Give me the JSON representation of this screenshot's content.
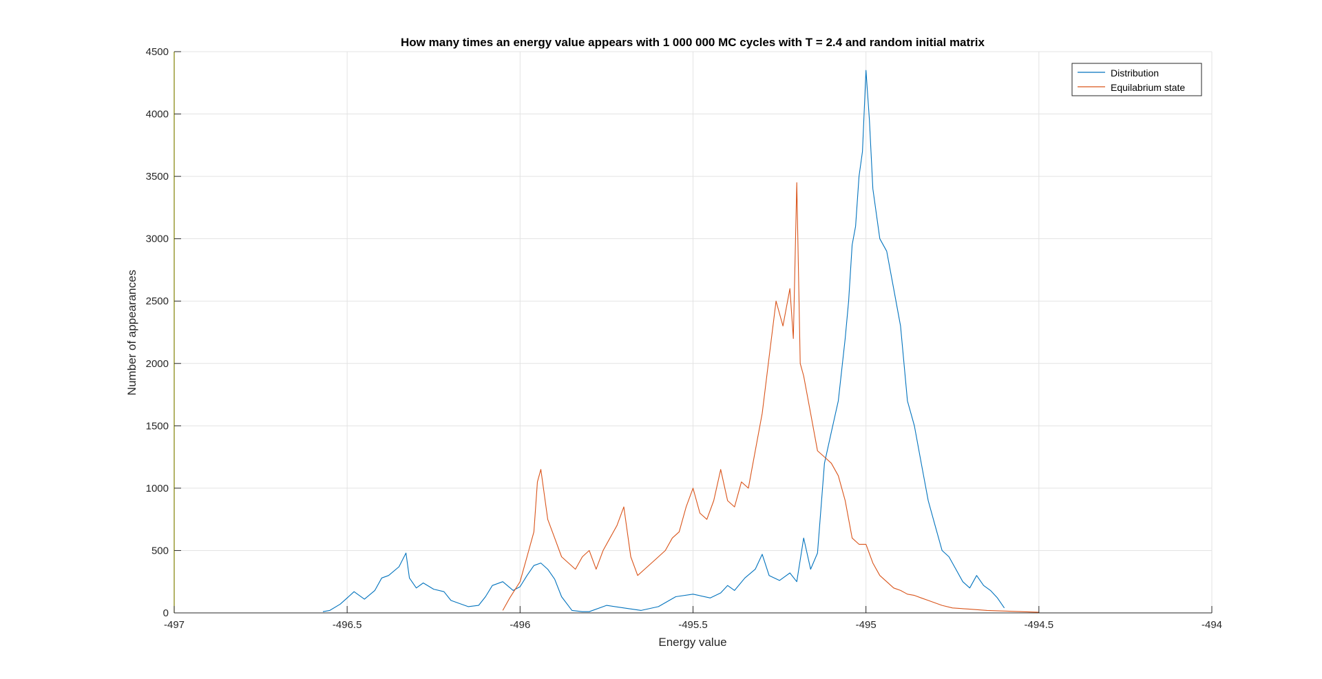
{
  "chart_data": {
    "type": "line",
    "title": "How many times an energy value appears with 1 000 000 MC cycles with T = 2.4 and random initial matrix",
    "xlabel": "Energy value",
    "ylabel": "Number of appearances",
    "xlim": [
      -497,
      -494
    ],
    "ylim": [
      0,
      4500
    ],
    "xticks": [
      -497,
      -496.5,
      -496,
      -495.5,
      -495,
      -494.5,
      -494
    ],
    "xtick_labels": [
      "-497",
      "-496.5",
      "-496",
      "-495.5",
      "-495",
      "-494.5",
      "-494"
    ],
    "yticks": [
      0,
      500,
      1000,
      1500,
      2000,
      2500,
      3000,
      3500,
      4000,
      4500
    ],
    "ytick_labels": [
      "0",
      "500",
      "1000",
      "1500",
      "2000",
      "2500",
      "3000",
      "3500",
      "4000",
      "4500"
    ],
    "grid": true,
    "legend_position": "top-right",
    "series": [
      {
        "name": "Distribution",
        "color": "#0072BD",
        "x": [
          -496.57,
          -496.55,
          -496.52,
          -496.5,
          -496.48,
          -496.45,
          -496.42,
          -496.4,
          -496.38,
          -496.35,
          -496.33,
          -496.32,
          -496.3,
          -496.28,
          -496.25,
          -496.22,
          -496.2,
          -496.18,
          -496.15,
          -496.12,
          -496.1,
          -496.08,
          -496.05,
          -496.02,
          -496.0,
          -495.98,
          -495.96,
          -495.94,
          -495.92,
          -495.9,
          -495.88,
          -495.85,
          -495.82,
          -495.8,
          -495.75,
          -495.7,
          -495.65,
          -495.6,
          -495.55,
          -495.5,
          -495.45,
          -495.42,
          -495.4,
          -495.38,
          -495.35,
          -495.32,
          -495.3,
          -495.28,
          -495.25,
          -495.22,
          -495.2,
          -495.18,
          -495.16,
          -495.14,
          -495.12,
          -495.1,
          -495.08,
          -495.06,
          -495.05,
          -495.04,
          -495.03,
          -495.02,
          -495.01,
          -495.0,
          -494.99,
          -494.98,
          -494.96,
          -494.94,
          -494.92,
          -494.9,
          -494.88,
          -494.86,
          -494.84,
          -494.82,
          -494.8,
          -494.78,
          -494.76,
          -494.74,
          -494.72,
          -494.7,
          -494.68,
          -494.66,
          -494.64,
          -494.62,
          -494.6
        ],
        "y": [
          10,
          20,
          70,
          120,
          170,
          110,
          180,
          280,
          300,
          370,
          480,
          280,
          200,
          240,
          190,
          170,
          100,
          80,
          50,
          60,
          130,
          220,
          250,
          180,
          210,
          300,
          380,
          400,
          350,
          270,
          130,
          20,
          10,
          10,
          60,
          40,
          20,
          50,
          130,
          150,
          120,
          160,
          220,
          180,
          280,
          350,
          470,
          300,
          260,
          320,
          250,
          600,
          350,
          480,
          1200,
          1450,
          1700,
          2200,
          2500,
          2950,
          3100,
          3500,
          3700,
          4350,
          3950,
          3400,
          3000,
          2900,
          2600,
          2300,
          1700,
          1500,
          1200,
          900,
          700,
          500,
          450,
          350,
          250,
          200,
          300,
          220,
          180,
          120,
          40
        ]
      },
      {
        "name": "Equilabrium state",
        "color": "#D95319",
        "x": [
          -496.05,
          -496.03,
          -496.0,
          -495.98,
          -495.96,
          -495.95,
          -495.94,
          -495.93,
          -495.92,
          -495.9,
          -495.88,
          -495.86,
          -495.84,
          -495.82,
          -495.8,
          -495.78,
          -495.76,
          -495.74,
          -495.72,
          -495.7,
          -495.68,
          -495.66,
          -495.64,
          -495.62,
          -495.6,
          -495.58,
          -495.56,
          -495.54,
          -495.52,
          -495.5,
          -495.48,
          -495.46,
          -495.44,
          -495.42,
          -495.4,
          -495.38,
          -495.36,
          -495.34,
          -495.32,
          -495.3,
          -495.28,
          -495.26,
          -495.24,
          -495.22,
          -495.21,
          -495.2,
          -495.19,
          -495.18,
          -495.16,
          -495.14,
          -495.12,
          -495.1,
          -495.08,
          -495.06,
          -495.04,
          -495.02,
          -495.0,
          -494.98,
          -494.96,
          -494.94,
          -494.92,
          -494.9,
          -494.88,
          -494.86,
          -494.84,
          -494.82,
          -494.8,
          -494.78,
          -494.75,
          -494.7,
          -494.65,
          -494.6,
          -494.55,
          -494.5
        ],
        "y": [
          20,
          120,
          250,
          450,
          650,
          1050,
          1150,
          950,
          750,
          600,
          450,
          400,
          350,
          450,
          500,
          350,
          500,
          600,
          700,
          850,
          450,
          300,
          350,
          400,
          450,
          500,
          600,
          650,
          850,
          1000,
          800,
          750,
          900,
          1150,
          900,
          850,
          1050,
          1000,
          1300,
          1600,
          2050,
          2500,
          2300,
          2600,
          2200,
          3450,
          2000,
          1900,
          1600,
          1300,
          1250,
          1200,
          1100,
          900,
          600,
          550,
          550,
          400,
          300,
          250,
          200,
          180,
          150,
          140,
          120,
          100,
          80,
          60,
          40,
          30,
          20,
          15,
          10,
          5
        ]
      }
    ]
  }
}
